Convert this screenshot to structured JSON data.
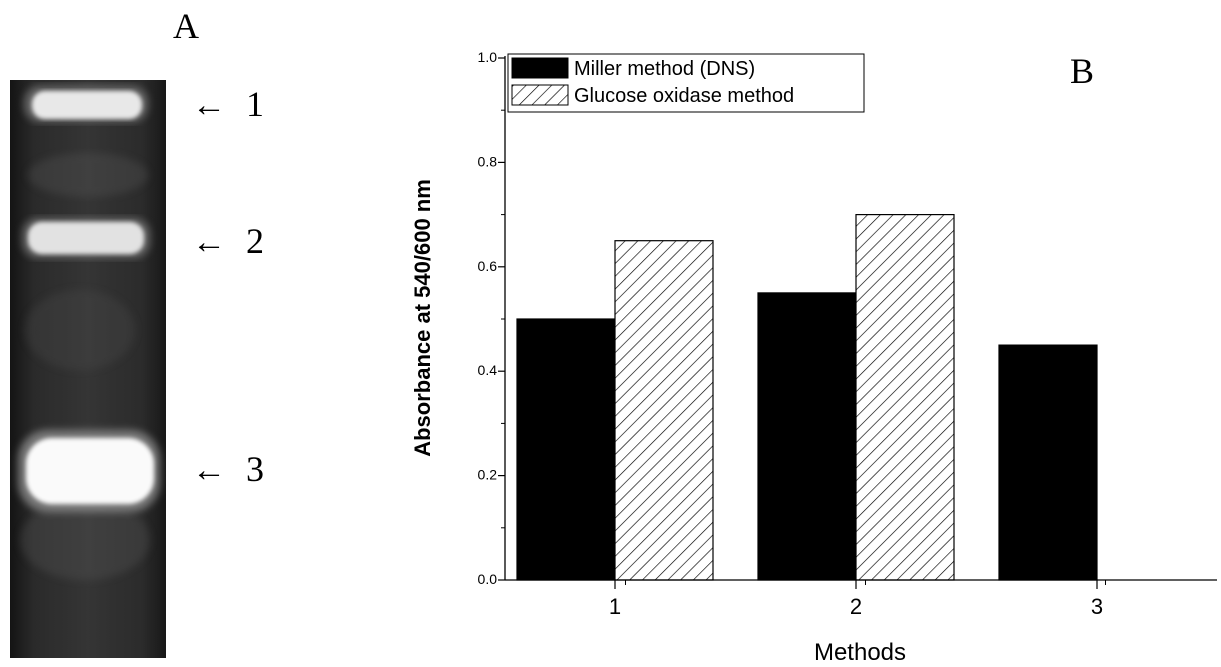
{
  "panel_a": {
    "label": "A",
    "lane_markers": [
      {
        "arrow": "←",
        "number": "1"
      },
      {
        "arrow": "←",
        "number": "2"
      },
      {
        "arrow": "←",
        "number": "3"
      }
    ]
  },
  "chart_data": {
    "type": "bar",
    "panel_label": "B",
    "title": "",
    "xlabel": "Methods",
    "ylabel": "Absorbance at 540/600 nm",
    "categories": [
      "1",
      "2",
      "3"
    ],
    "ylim": [
      0.0,
      1.0
    ],
    "yticks": [
      "0.0",
      "0.2",
      "0.4",
      "0.6",
      "0.8",
      "1.0"
    ],
    "grid": false,
    "legend_position": "top-left",
    "series": [
      {
        "name": "Miller method (DNS)",
        "fill": "solid",
        "color": "#000000",
        "values": [
          0.5,
          0.55,
          0.45
        ]
      },
      {
        "name": "Glucose oxidase method",
        "fill": "hatched",
        "color": "#000000",
        "values": [
          0.65,
          0.7,
          null
        ]
      }
    ]
  }
}
